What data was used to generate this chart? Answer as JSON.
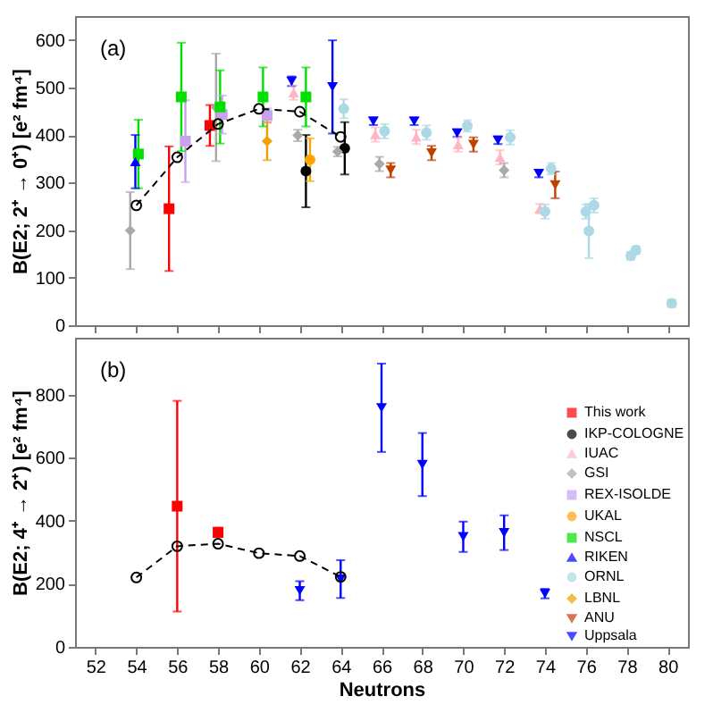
{
  "chart_data": [
    {
      "type": "scatter",
      "ylabel": "B(E2; 2⁺ → 0⁺) [e² fm⁴]",
      "xlim": [
        51,
        81
      ],
      "xticks": [
        52,
        54,
        56,
        58,
        60,
        62,
        64,
        66,
        68,
        70,
        72,
        74,
        76,
        78,
        80
      ],
      "ylim": [
        0,
        650
      ],
      "yticks": [
        0,
        100,
        200,
        300,
        400,
        500,
        600
      ],
      "tick_labels": "y",
      "legend": "bottom right",
      "annotations": [
        "(a)"
      ],
      "series": [
        {
          "type": "line",
          "color": "#000000",
          "marker": "circle",
          "line_style": "dashed",
          "x": [
            54,
            56,
            58,
            60,
            62,
            64
          ],
          "values": [
            252,
            353,
            423,
            455,
            449,
            396
          ]
        },
        {
          "name": "This work",
          "color": "#ff0000",
          "marker": "square",
          "x": [
            55.6,
            57.6
          ],
          "values": [
            245,
            420
          ],
          "errors": [
            131,
            43
          ]
        },
        {
          "name": "IKP-COLOGNE",
          "color": "#000000",
          "marker": "circle",
          "x": [
            62.3,
            64.2
          ],
          "values": [
            324,
            372
          ],
          "errors": [
            76,
            55
          ]
        },
        {
          "name": "IUAC",
          "color": "#ffb6c1",
          "marker": "triangle",
          "x": [
            61.7,
            65.7,
            67.7,
            69.75,
            71.8,
            73.75
          ],
          "values": [
            489,
            401,
            396,
            380,
            353,
            245
          ],
          "errors": [
            15,
            15,
            15,
            15,
            15,
            10
          ]
        },
        {
          "name": "GSI",
          "color": "#a9a9a9",
          "marker": "diamond",
          "x": [
            53.7,
            57.9,
            61.9,
            63.85,
            65.9,
            72.0
          ],
          "values": [
            199,
            458,
            399,
            365,
            339,
            326
          ],
          "errors": [
            81,
            113,
            12,
            10,
            15,
            15
          ]
        },
        {
          "name": "REX-ISOLDE",
          "color": "#c8a2f0",
          "marker": "square",
          "x": [
            56.4,
            58.2,
            60.4
          ],
          "values": [
            387,
            443,
            441
          ],
          "errors": [
            86,
            40,
            15
          ]
        },
        {
          "name": "UKAL",
          "color": "#ffa500",
          "marker": "circle",
          "x": [
            62.5
          ],
          "values": [
            348
          ],
          "errors": [
            45
          ]
        },
        {
          "name": "NSCL",
          "color": "#00e000",
          "marker": "square",
          "x": [
            54.1,
            56.2,
            58.1,
            60.2,
            62.3
          ],
          "values": [
            360,
            480,
            459,
            480,
            480
          ],
          "errors": [
            72,
            114,
            77,
            62,
            62
          ]
        },
        {
          "name": "RIKEN",
          "color": "#0000ff",
          "marker": "triangle",
          "x": [
            53.95
          ],
          "values": [
            344
          ],
          "errors": [
            56
          ]
        },
        {
          "name": "ORNL",
          "color": "#add8e6",
          "marker": "circle",
          "x": [
            64.15,
            66.15,
            68.2,
            70.2,
            72.3,
            74.0,
            74.3,
            76.0,
            76.15,
            76.4,
            78.2,
            78.45,
            80.2
          ],
          "values": [
            455,
            408,
            405,
            419,
            395,
            239,
            329,
            239,
            198,
            252,
            146,
            158,
            46
          ],
          "errors": [
            20,
            15,
            15,
            12,
            15,
            15,
            12,
            15,
            57,
            15,
            8,
            8,
            8
          ]
        },
        {
          "name": "LBNL",
          "color": "#f0a000",
          "marker": "diamond",
          "x": [
            60.4
          ],
          "values": [
            387
          ],
          "errors": [
            40
          ]
        },
        {
          "name": "ANU",
          "color": "#c04000",
          "marker": "triangle-down",
          "x": [
            66.45,
            68.45,
            70.5,
            74.5
          ],
          "values": [
            326,
            362,
            380,
            295
          ],
          "errors": [
            15,
            15,
            15,
            28
          ]
        },
        {
          "name": "Uppsala",
          "color": "#0000ff",
          "marker": "triangle-down",
          "x": [
            61.6,
            63.6,
            65.6,
            67.6,
            69.7,
            71.7,
            73.7
          ],
          "values": [
            513,
            501,
            429,
            429,
            404,
            389,
            319
          ],
          "errors": [
            10,
            98,
            8,
            8,
            8,
            8,
            8
          ]
        }
      ]
    },
    {
      "type": "scatter",
      "xlabel": "Neutrons",
      "ylabel": "B(E2; 4⁺ → 2⁺) [e² fm⁴]",
      "xlim": [
        51,
        81
      ],
      "xticks": [
        52,
        54,
        56,
        58,
        60,
        62,
        64,
        66,
        68,
        70,
        72,
        74,
        76,
        78,
        80
      ],
      "ylim": [
        0,
        980
      ],
      "yticks": [
        0,
        200,
        400,
        600,
        800
      ],
      "legend": "bottom right",
      "annotations": [
        "(b)"
      ],
      "series": [
        {
          "type": "line",
          "color": "#000000",
          "marker": "circle",
          "line_style": "dashed",
          "x": [
            54,
            56,
            58,
            60,
            62,
            64
          ],
          "values": [
            220,
            319,
            327,
            297,
            288,
            222
          ]
        },
        {
          "name": "This work",
          "color": "#ff0000",
          "marker": "square",
          "x": [
            56,
            58
          ],
          "values": [
            446,
            363
          ],
          "errors": [
            334,
            15
          ]
        },
        {
          "name": "Uppsala",
          "color": "#0000ff",
          "marker": "triangle-down",
          "x": [
            62,
            64,
            66,
            68,
            70,
            72,
            74
          ],
          "values": [
            178,
            215,
            758,
            578,
            349,
            362,
            169
          ],
          "errors": [
            30,
            60,
            140,
            100,
            48,
            55,
            15
          ]
        }
      ]
    }
  ]
}
